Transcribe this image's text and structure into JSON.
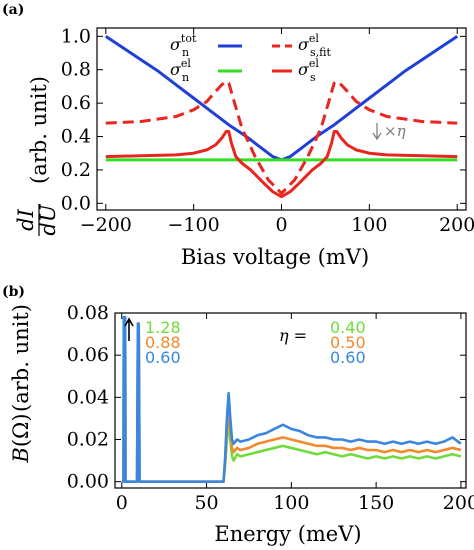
{
  "chart_data": [
    {
      "panel_label": "(a)",
      "type": "line",
      "xlabel": "Bias voltage (mV)",
      "ylabel": "dI/dU (arb. unit)",
      "ylabel_num": "dI",
      "ylabel_den": "dU",
      "ylabel_unit": "(arb. unit)",
      "xlim": [
        -210,
        210
      ],
      "ylim": [
        -0.04,
        1.05
      ],
      "xticks": [
        -200,
        -100,
        0,
        100,
        200
      ],
      "xtick_labels": [
        "−200",
        "−100",
        "0",
        "100",
        "200"
      ],
      "yticks": [
        0.0,
        0.2,
        0.4,
        0.6,
        0.8,
        1.0
      ],
      "ytick_labels": [
        "0.0",
        "0.2",
        "0.4",
        "0.6",
        "0.8",
        "1.0"
      ],
      "legend": [
        {
          "symbol": "σ",
          "sup": "tot",
          "sub": "n",
          "color": "#1f3fd6",
          "dash": "solid"
        },
        {
          "symbol": "σ",
          "sup": "el",
          "sub": "n",
          "color": "#33dd22",
          "dash": "solid"
        },
        {
          "symbol": "σ",
          "sup": "el",
          "sub": "s,fit",
          "color": "#e8251e",
          "dash": "dashed"
        },
        {
          "symbol": "σ",
          "sup": "el",
          "sub": "s",
          "color": "#e8251e",
          "dash": "solid"
        }
      ],
      "annotation": "×η",
      "series": [
        {
          "color": "#1f3fd6",
          "dash": "solid",
          "x": [
            -200,
            -180,
            -160,
            -140,
            -120,
            -100,
            -80,
            -60,
            -40,
            -20,
            -10,
            0,
            10,
            20,
            40,
            60,
            80,
            100,
            120,
            140,
            160,
            180,
            200
          ],
          "y": [
            1.0,
            0.93,
            0.86,
            0.79,
            0.71,
            0.63,
            0.55,
            0.47,
            0.4,
            0.32,
            0.28,
            0.26,
            0.28,
            0.32,
            0.4,
            0.47,
            0.55,
            0.63,
            0.71,
            0.79,
            0.86,
            0.93,
            1.0
          ]
        },
        {
          "color": "#33dd22",
          "dash": "solid",
          "x": [
            -200,
            200
          ],
          "y": [
            0.26,
            0.26
          ]
        },
        {
          "color": "#e8251e",
          "dash": "dashed",
          "x": [
            -200,
            -160,
            -120,
            -100,
            -85,
            -75,
            -68,
            -63,
            -60,
            -55,
            -45,
            -30,
            -15,
            0,
            15,
            30,
            45,
            55,
            60,
            63,
            68,
            75,
            85,
            100,
            120,
            160,
            200
          ],
          "y": [
            0.48,
            0.49,
            0.52,
            0.56,
            0.61,
            0.67,
            0.71,
            0.73,
            0.72,
            0.63,
            0.45,
            0.28,
            0.14,
            0.06,
            0.14,
            0.28,
            0.45,
            0.63,
            0.72,
            0.73,
            0.71,
            0.67,
            0.61,
            0.56,
            0.52,
            0.49,
            0.48
          ]
        },
        {
          "color": "#e8251e",
          "dash": "solid",
          "x": [
            -200,
            -160,
            -120,
            -100,
            -85,
            -75,
            -68,
            -63,
            -60,
            -57,
            -52,
            -45,
            -35,
            -20,
            -10,
            0,
            10,
            20,
            35,
            45,
            52,
            57,
            60,
            63,
            68,
            75,
            85,
            100,
            120,
            160,
            200
          ],
          "y": [
            0.28,
            0.285,
            0.29,
            0.3,
            0.32,
            0.35,
            0.39,
            0.43,
            0.43,
            0.36,
            0.28,
            0.24,
            0.2,
            0.12,
            0.07,
            0.04,
            0.07,
            0.12,
            0.2,
            0.24,
            0.28,
            0.36,
            0.43,
            0.43,
            0.39,
            0.35,
            0.32,
            0.3,
            0.29,
            0.285,
            0.28
          ]
        }
      ]
    },
    {
      "panel_label": "(b)",
      "type": "line",
      "xlabel": "Energy (meV)",
      "ylabel": "B(Ω) (arb. unit)",
      "ylabel_func": "B",
      "ylabel_arg": "(Ω)",
      "ylabel_unit": "(arb. unit)",
      "xlim": [
        -4,
        203
      ],
      "ylim": [
        -0.003,
        0.08
      ],
      "xticks": [
        0,
        50,
        100,
        150,
        200
      ],
      "xtick_labels": [
        "0",
        "50",
        "100",
        "150",
        "200"
      ],
      "yticks": [
        0.0,
        0.02,
        0.04,
        0.06,
        0.08
      ],
      "ytick_labels": [
        "0.00",
        "0.02",
        "0.04",
        "0.06",
        "0.08"
      ],
      "eta_label": "η =",
      "left_values": [
        "1.28",
        "0.88",
        "0.60"
      ],
      "eta_values": [
        "0.40",
        "0.50",
        "0.60"
      ],
      "series_colors": [
        "#6fdc3c",
        "#f08a2c",
        "#3b86e0"
      ],
      "series": [
        {
          "color": "#6fdc3c",
          "eta": "0.40",
          "x": [
            0,
            1,
            1.2,
            2,
            2.2,
            9,
            9.5,
            10,
            10.5,
            11,
            60,
            61,
            62,
            63,
            64,
            65,
            66,
            68,
            70,
            75,
            80,
            85,
            90,
            95,
            100,
            105,
            110,
            115,
            120,
            125,
            130,
            135,
            140,
            145,
            150,
            155,
            160,
            165,
            170,
            175,
            180,
            185,
            190,
            195,
            200
          ],
          "y": [
            0,
            0,
            0.076,
            0.076,
            0,
            0,
            0.07,
            0.07,
            0,
            0,
            0,
            0.008,
            0.02,
            0.03,
            0.02,
            0.012,
            0.01,
            0.013,
            0.012,
            0.013,
            0.014,
            0.015,
            0.016,
            0.017,
            0.016,
            0.015,
            0.014,
            0.013,
            0.014,
            0.013,
            0.012,
            0.013,
            0.012,
            0.011,
            0.012,
            0.011,
            0.012,
            0.011,
            0.012,
            0.011,
            0.012,
            0.011,
            0.012,
            0.013,
            0.012
          ]
        },
        {
          "color": "#f08a2c",
          "eta": "0.50",
          "x": [
            0,
            1,
            1.2,
            2,
            2.2,
            9,
            9.5,
            10,
            10.5,
            11,
            60,
            61,
            62,
            63,
            64,
            65,
            66,
            68,
            70,
            75,
            80,
            85,
            90,
            95,
            100,
            105,
            110,
            115,
            120,
            125,
            130,
            135,
            140,
            145,
            150,
            155,
            160,
            165,
            170,
            175,
            180,
            185,
            190,
            195,
            200
          ],
          "y": [
            0,
            0,
            0.076,
            0.076,
            0,
            0,
            0.072,
            0.072,
            0,
            0,
            0,
            0.01,
            0.025,
            0.036,
            0.025,
            0.016,
            0.014,
            0.016,
            0.015,
            0.016,
            0.018,
            0.019,
            0.02,
            0.021,
            0.02,
            0.019,
            0.018,
            0.017,
            0.017,
            0.016,
            0.016,
            0.015,
            0.016,
            0.015,
            0.015,
            0.014,
            0.015,
            0.014,
            0.015,
            0.014,
            0.015,
            0.014,
            0.015,
            0.016,
            0.015
          ]
        },
        {
          "color": "#3b86e0",
          "eta": "0.60",
          "x": [
            0,
            1,
            1.2,
            2,
            2.2,
            9,
            9.5,
            10,
            10.5,
            11,
            60,
            61,
            62,
            63,
            64,
            65,
            66,
            68,
            70,
            75,
            80,
            85,
            90,
            95,
            100,
            105,
            110,
            115,
            120,
            125,
            130,
            135,
            140,
            145,
            150,
            155,
            160,
            165,
            170,
            175,
            180,
            185,
            190,
            195,
            200
          ],
          "y": [
            0,
            0,
            0.078,
            0.078,
            0,
            0,
            0.075,
            0.075,
            0,
            0,
            0,
            0.012,
            0.03,
            0.042,
            0.03,
            0.02,
            0.018,
            0.02,
            0.019,
            0.02,
            0.022,
            0.023,
            0.025,
            0.027,
            0.025,
            0.024,
            0.022,
            0.021,
            0.021,
            0.02,
            0.02,
            0.019,
            0.02,
            0.019,
            0.019,
            0.018,
            0.019,
            0.018,
            0.019,
            0.018,
            0.019,
            0.018,
            0.019,
            0.021,
            0.018
          ]
        }
      ]
    }
  ]
}
